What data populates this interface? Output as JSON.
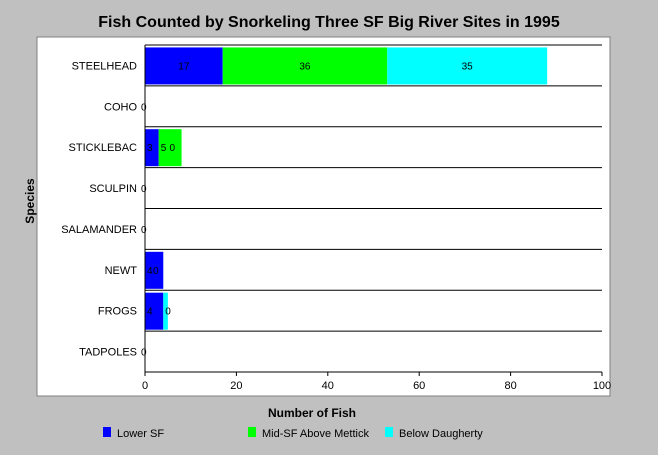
{
  "chart_data": {
    "type": "bar",
    "orientation": "horizontal",
    "stacked": true,
    "title": "Fish Counted by Snorkeling Three SF Big River Sites in 1995",
    "xlabel": "Number of Fish",
    "ylabel": "Species",
    "xlim": [
      0,
      100
    ],
    "xticks": [
      0,
      20,
      40,
      60,
      80,
      100
    ],
    "grid": false,
    "legend_position": "bottom",
    "categories": [
      "STEELHEAD",
      "COHO",
      "STICKLEBAC",
      "SCULPIN",
      "SALAMANDER",
      "NEWT",
      "FROGS",
      "TADPOLES"
    ],
    "series": [
      {
        "name": "Lower SF",
        "color": "#0000ff",
        "values": [
          17,
          0,
          3,
          0,
          0,
          4,
          4,
          0
        ]
      },
      {
        "name": "Mid-SF Above Mettick",
        "color": "#00ff00",
        "values": [
          36,
          0,
          5,
          0,
          0,
          0,
          0,
          0
        ]
      },
      {
        "name": "Below Daugherty",
        "color": "#00ffff",
        "values": [
          35,
          0,
          0,
          0,
          0,
          0,
          1,
          0
        ]
      }
    ],
    "data_labels": [
      [
        "17",
        "36",
        "35"
      ],
      [
        "0"
      ],
      [
        "3",
        "5",
        "0"
      ],
      [
        "0"
      ],
      [
        "0"
      ],
      [
        "4",
        "0"
      ],
      [
        "4",
        "0"
      ],
      [
        "0"
      ]
    ]
  }
}
